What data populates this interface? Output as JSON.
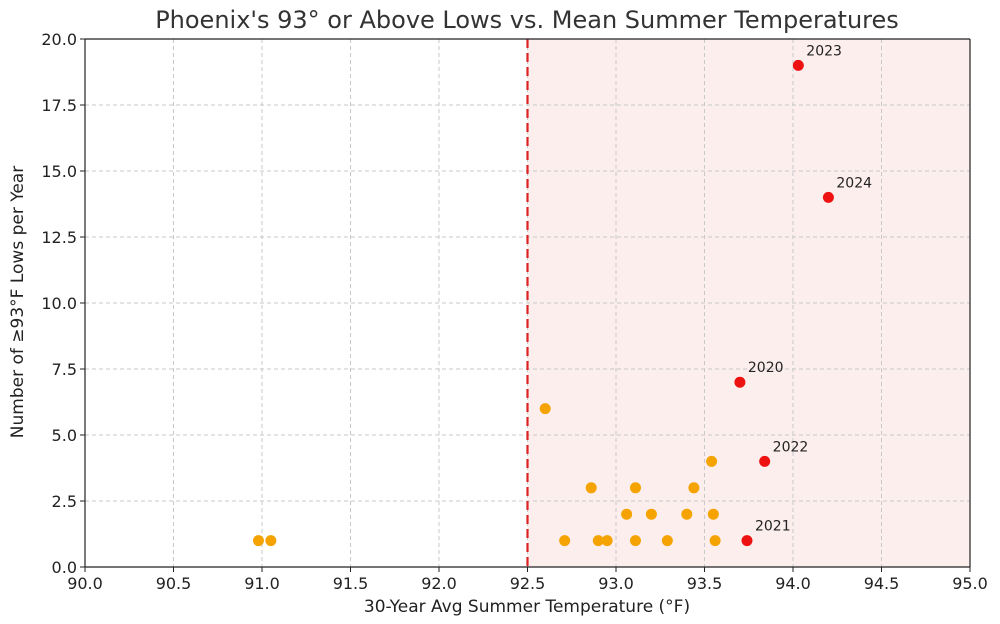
{
  "chart_data": {
    "type": "scatter",
    "title": "Phoenix's 93° or Above Lows vs. Mean Summer Temperatures",
    "xlabel": "30-Year Avg Summer Temperature (°F)",
    "ylabel": "Number of ≥93°F Lows per Year",
    "xlim": [
      90.0,
      95.0
    ],
    "ylim": [
      0.0,
      20.0
    ],
    "x_ticks": [
      "90.0",
      "90.5",
      "91.0",
      "91.5",
      "92.0",
      "92.5",
      "93.0",
      "93.5",
      "94.0",
      "94.5",
      "95.0"
    ],
    "y_ticks": [
      "0.0",
      "2.5",
      "5.0",
      "7.5",
      "10.0",
      "12.5",
      "15.0",
      "17.5",
      "20.0"
    ],
    "grid": true,
    "threshold": {
      "x": 92.5,
      "color": "#dd2222",
      "region_color": "#fdeeee"
    },
    "series": [
      {
        "color": "#f5a300",
        "points": [
          {
            "x": 90.98,
            "y": 1
          },
          {
            "x": 91.05,
            "y": 1
          },
          {
            "x": 92.6,
            "y": 6
          },
          {
            "x": 92.71,
            "y": 1
          },
          {
            "x": 92.86,
            "y": 3
          },
          {
            "x": 92.9,
            "y": 1
          },
          {
            "x": 92.95,
            "y": 1
          },
          {
            "x": 93.06,
            "y": 2
          },
          {
            "x": 93.11,
            "y": 3
          },
          {
            "x": 93.11,
            "y": 1
          },
          {
            "x": 93.2,
            "y": 2
          },
          {
            "x": 93.29,
            "y": 1
          },
          {
            "x": 93.4,
            "y": 2
          },
          {
            "x": 93.44,
            "y": 3
          },
          {
            "x": 93.54,
            "y": 4
          },
          {
            "x": 93.55,
            "y": 2
          },
          {
            "x": 93.56,
            "y": 1
          }
        ]
      },
      {
        "color": "#ee1111",
        "points": [
          {
            "x": 94.03,
            "y": 19,
            "label": "2023"
          },
          {
            "x": 94.2,
            "y": 14,
            "label": "2024"
          },
          {
            "x": 93.7,
            "y": 7,
            "label": "2020"
          },
          {
            "x": 93.84,
            "y": 4,
            "label": "2022"
          },
          {
            "x": 93.74,
            "y": 1,
            "label": "2021"
          }
        ]
      }
    ]
  }
}
